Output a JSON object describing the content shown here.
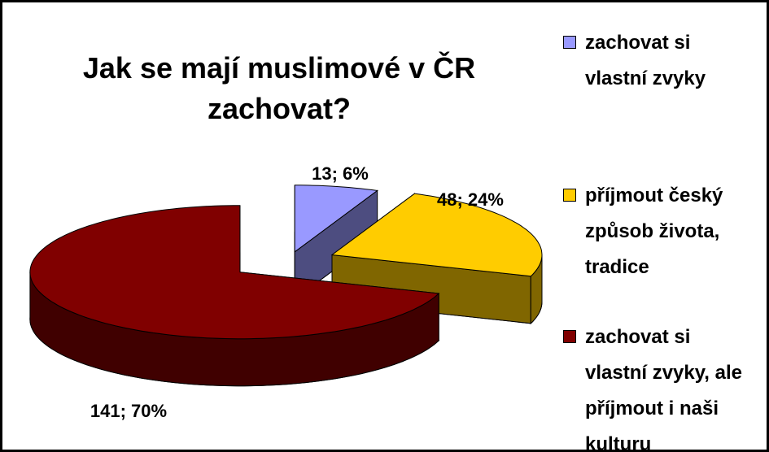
{
  "chart_data": {
    "type": "pie3d",
    "title": "Jak se mají muslimové v ČR zachovat?",
    "categories": [
      "zachovat si vlastní zvyky",
      "příjmout český způsob života, tradice",
      "zachovat si vlastní zvyky, ale příjmout i naši kulturu"
    ],
    "values": [
      13,
      48,
      141
    ],
    "value_labels": [
      "13; 6%",
      "48; 24%",
      "141; 70%"
    ],
    "colors": [
      "#9999ff",
      "#ffcc00",
      "#800000"
    ],
    "side_colors": [
      "#4d4d80",
      "#806600",
      "#400000"
    ],
    "legend": "right"
  }
}
